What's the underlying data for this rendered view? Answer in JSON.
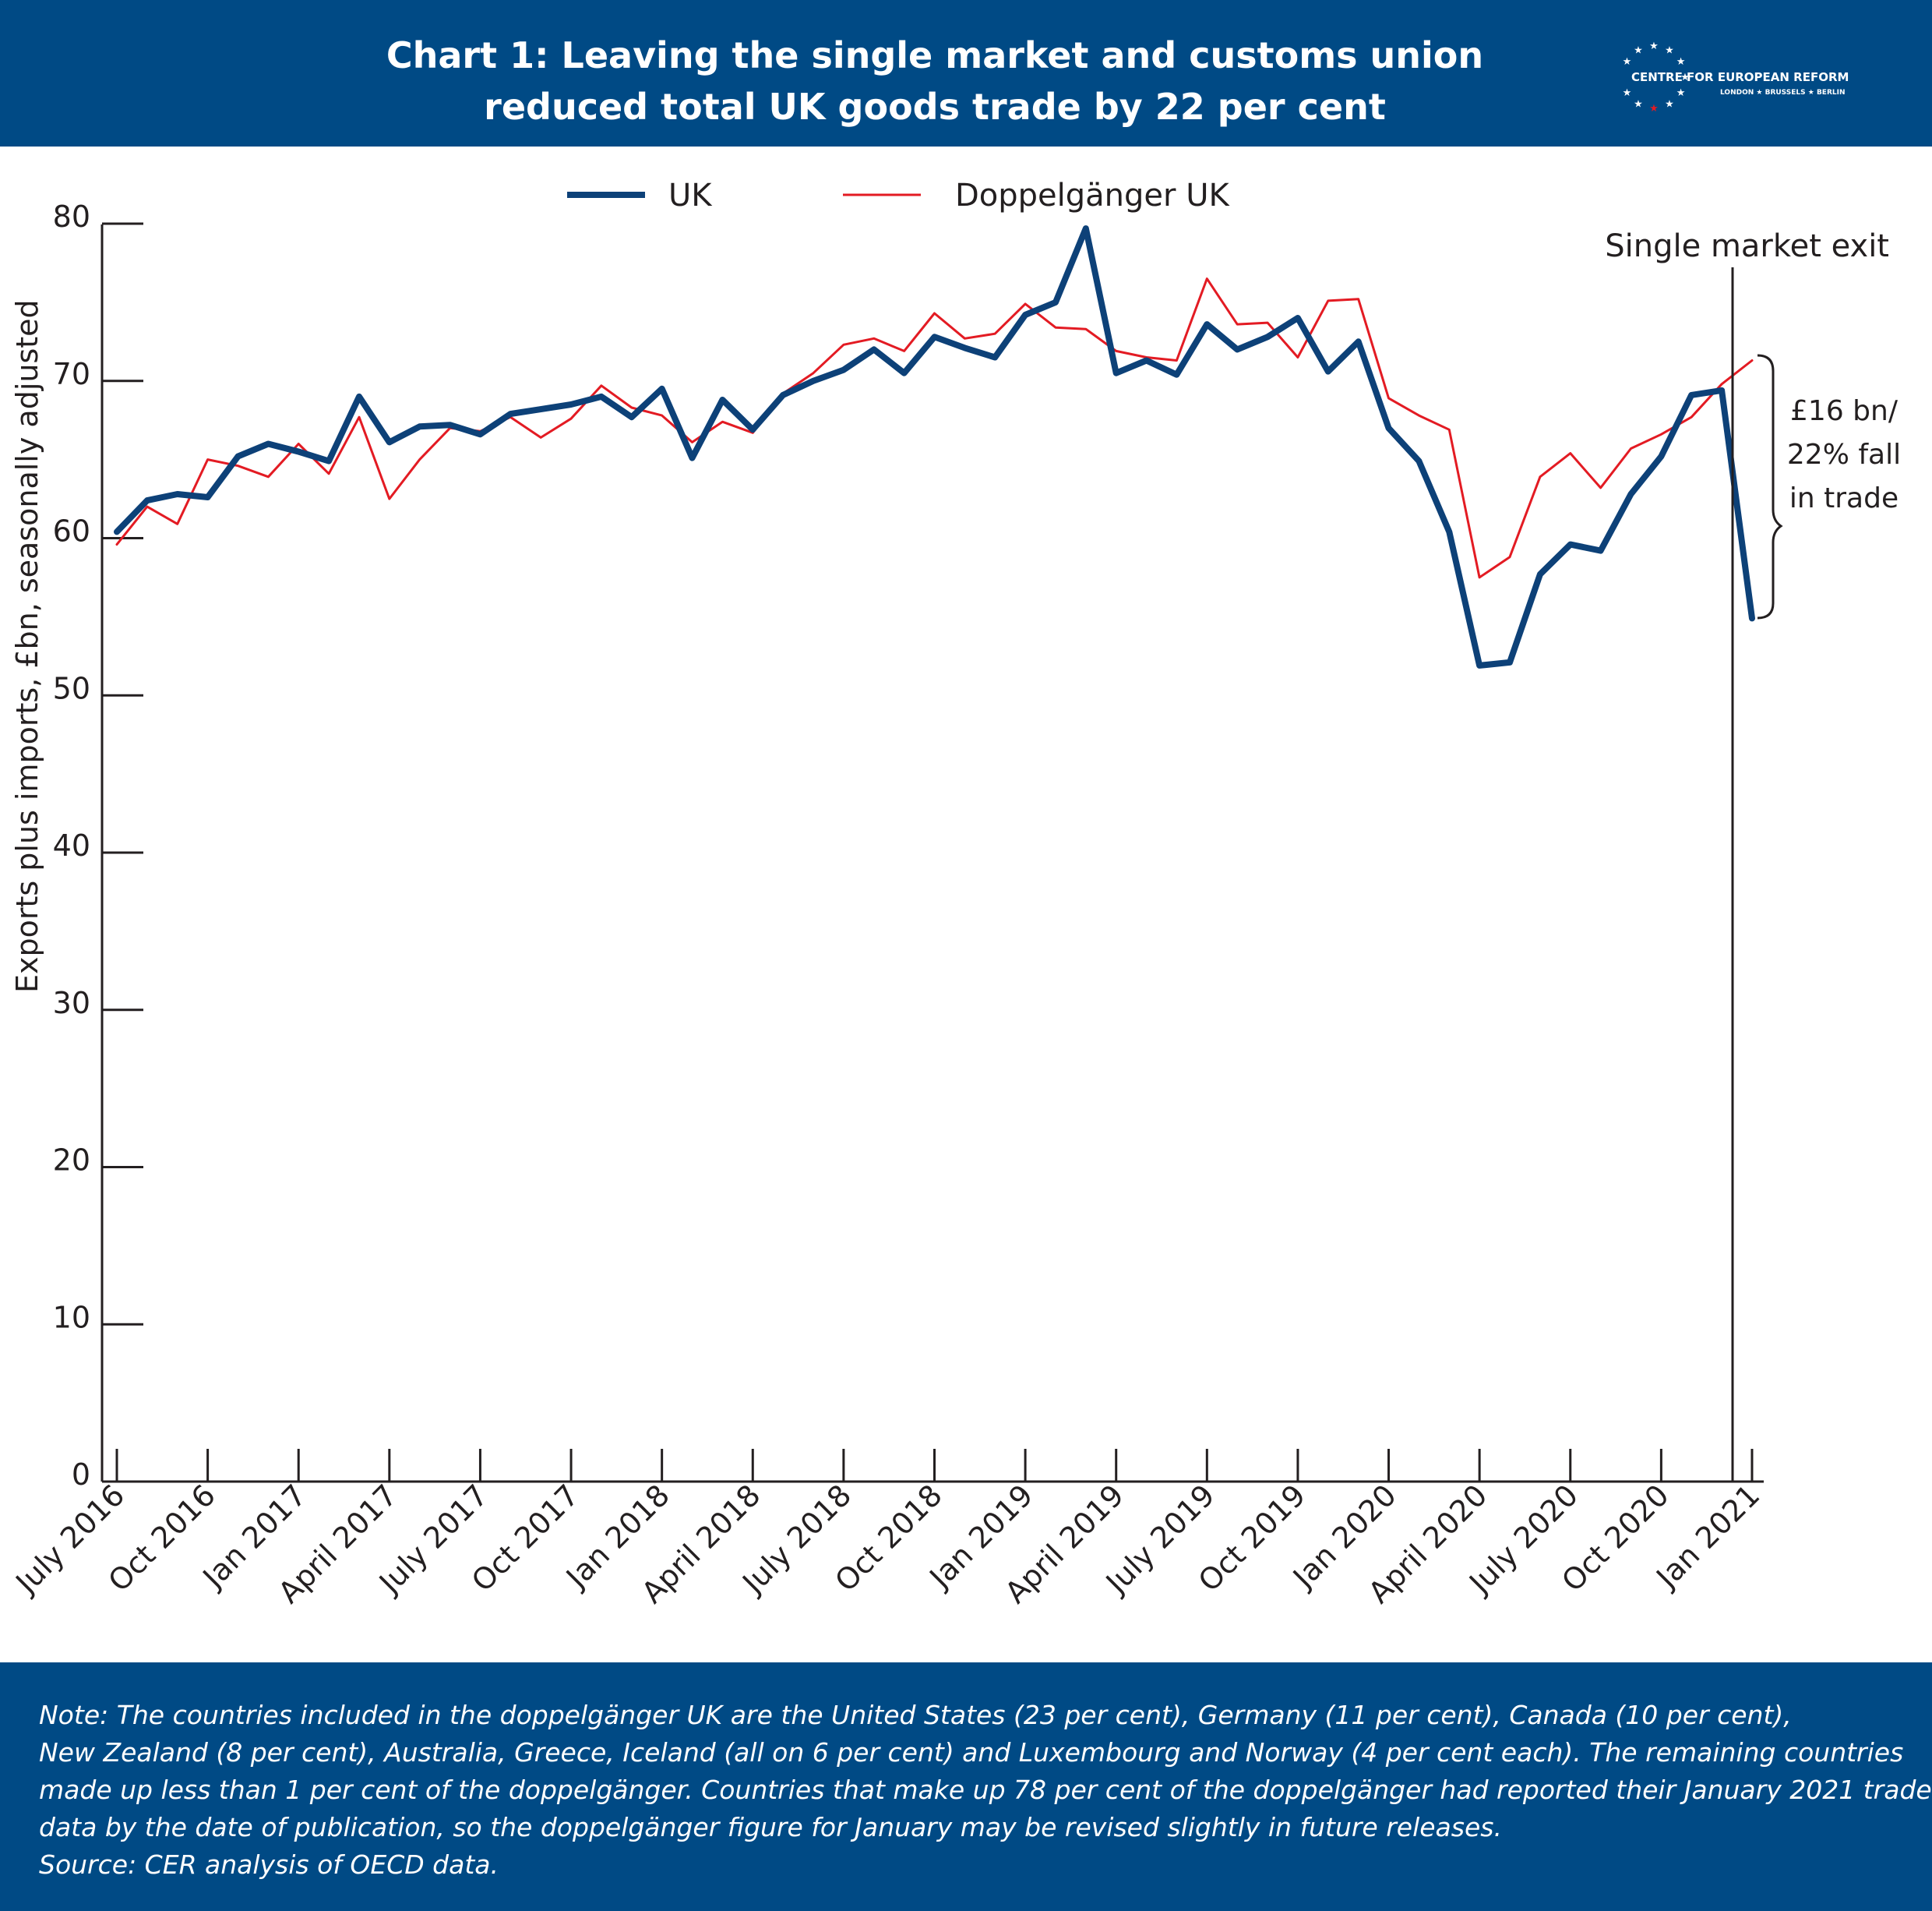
{
  "header": {
    "title_line1": "Chart 1: Leaving the single market and customs union",
    "title_line2": "reduced total UK goods trade by 22 per cent",
    "logo_name": "CENTRE FOR EUROPEAN REFORM",
    "logo_cities": "LONDON ★ BRUSSELS ★ BERLIN",
    "logo_icon": "eu-stars-icon"
  },
  "colors": {
    "band": "#004a85",
    "uk": "#0d4178",
    "doppelganger": "#e31b23",
    "axis": "#231f20"
  },
  "chart_data": {
    "type": "line",
    "title": "Chart 1: Leaving the single market and customs union reduced total UK goods trade by 22 per cent",
    "ylabel": "Exports plus imports, £bn, seasonally adjusted",
    "xlabel": "",
    "ylim": [
      0,
      80
    ],
    "yticks": [
      0,
      10,
      20,
      30,
      40,
      50,
      60,
      70,
      80
    ],
    "grid": false,
    "legend_position": "top-center",
    "x_tick_labels": [
      "July 2016",
      "Oct 2016",
      "Jan 2017",
      "April 2017",
      "July 2017",
      "Oct 2017",
      "Jan 2018",
      "April 2018",
      "July 2018",
      "Oct 2018",
      "Jan 2019",
      "April 2019",
      "July 2019",
      "Oct 2019",
      "Jan 2020",
      "April 2020",
      "July 2020",
      "Oct 2020",
      "Jan 2021"
    ],
    "x": [
      "Jul 2016",
      "Aug 2016",
      "Sep 2016",
      "Oct 2016",
      "Nov 2016",
      "Dec 2016",
      "Jan 2017",
      "Feb 2017",
      "Mar 2017",
      "Apr 2017",
      "May 2017",
      "Jun 2017",
      "Jul 2017",
      "Aug 2017",
      "Sep 2017",
      "Oct 2017",
      "Nov 2017",
      "Dec 2017",
      "Jan 2018",
      "Feb 2018",
      "Mar 2018",
      "Apr 2018",
      "May 2018",
      "Jun 2018",
      "Jul 2018",
      "Aug 2018",
      "Sep 2018",
      "Oct 2018",
      "Nov 2018",
      "Dec 2018",
      "Jan 2019",
      "Feb 2019",
      "Mar 2019",
      "Apr 2019",
      "May 2019",
      "Jun 2019",
      "Jul 2019",
      "Aug 2019",
      "Sep 2019",
      "Oct 2019",
      "Nov 2019",
      "Dec 2019",
      "Jan 2020",
      "Feb 2020",
      "Mar 2020",
      "Apr 2020",
      "May 2020",
      "Jun 2020",
      "Jul 2020",
      "Aug 2020",
      "Sep 2020",
      "Oct 2020",
      "Nov 2020",
      "Dec 2020",
      "Jan 2021"
    ],
    "series": [
      {
        "name": "UK",
        "color": "#0d4178",
        "values": [
          60.4,
          62.4,
          62.8,
          62.6,
          65.2,
          66.0,
          65.5,
          64.9,
          69.0,
          66.1,
          67.1,
          67.2,
          66.6,
          67.9,
          68.2,
          68.5,
          69.0,
          67.7,
          69.5,
          65.1,
          68.8,
          66.9,
          69.1,
          70.0,
          70.7,
          72.0,
          70.5,
          72.8,
          72.1,
          71.5,
          74.2,
          75.0,
          79.7,
          70.5,
          71.3,
          70.4,
          73.6,
          72.0,
          72.8,
          74.0,
          70.6,
          72.5,
          67.0,
          64.9,
          60.4,
          51.9,
          52.1,
          57.7,
          59.6,
          59.2,
          62.8,
          65.2,
          69.1,
          69.4,
          54.9
        ]
      },
      {
        "name": "Doppelgänger UK",
        "color": "#e31b23",
        "values": [
          59.6,
          62.0,
          60.9,
          65.0,
          64.6,
          63.9,
          66.0,
          64.1,
          67.7,
          62.5,
          65.0,
          67.0,
          66.8,
          67.7,
          66.4,
          67.6,
          69.7,
          68.3,
          67.8,
          66.1,
          67.4,
          66.7,
          69.2,
          70.5,
          72.3,
          72.7,
          71.9,
          74.3,
          72.7,
          73.0,
          74.9,
          73.4,
          73.3,
          71.9,
          71.5,
          71.3,
          76.5,
          73.6,
          73.7,
          71.5,
          75.1,
          75.2,
          68.9,
          67.8,
          66.9,
          57.5,
          58.8,
          63.9,
          65.4,
          63.2,
          65.7,
          66.6,
          67.7,
          69.8,
          71.3
        ]
      }
    ],
    "annotations": {
      "event_label": "Single market exit",
      "event_x": "Jan 2021",
      "gap_line1": "£16 bn/",
      "gap_line2": "22% fall",
      "gap_line3": "in trade"
    }
  },
  "footer": {
    "note_lines": [
      "Note: The countries included in the doppelgänger UK are the United States (23 per cent), Germany (11 per cent), Canada (10 per cent),",
      "New Zealand (8 per cent), Australia, Greece, Iceland (all on 6 per cent) and Luxembourg and Norway (4 per cent each). The remaining countries",
      "made up less than 1 per cent of the doppelgänger. Countries that make up 78 per cent of the doppelgänger had reported their January 2021 trade",
      "data by the date of publication, so the doppelgänger figure for January may be revised slightly in future releases."
    ],
    "source": "Source: CER analysis of OECD data."
  }
}
